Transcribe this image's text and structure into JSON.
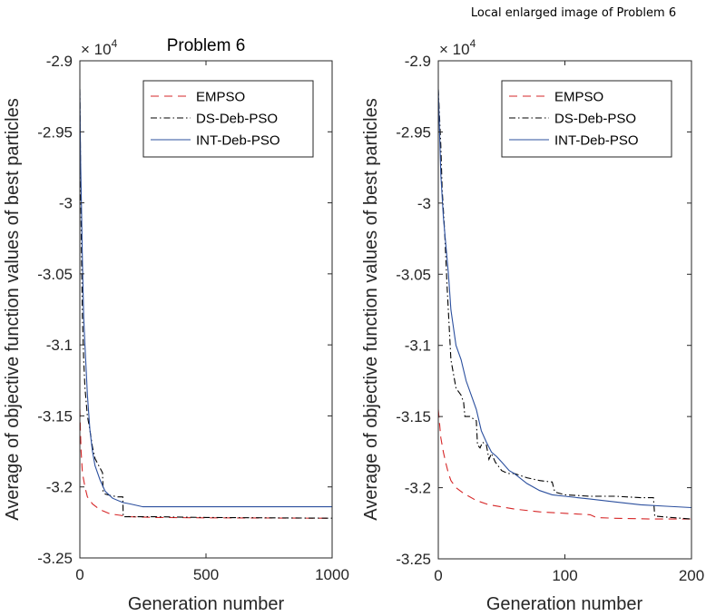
{
  "figure_title": "Local enlarged image of Problem 6",
  "colors": {
    "EMPSO": "#d62728",
    "DS-Deb-PSO": "#000000",
    "INT-Deb-PSO": "#2b4f9e",
    "axis": "#262626"
  },
  "chart_data": [
    {
      "type": "line",
      "title": "Problem 6",
      "xlabel": "Generation number",
      "ylabel": "Average of objective function values of best particles",
      "exponent_label": "× 10",
      "exponent_power": "4",
      "xlim": [
        0,
        1000
      ],
      "ylim": [
        -3.25,
        -2.9
      ],
      "xticks": [
        0,
        500,
        1000
      ],
      "xtick_labels": [
        "0",
        "500",
        "1000"
      ],
      "yticks": [
        -3.25,
        -3.2,
        -3.15,
        -3.1,
        -3.05,
        -3,
        -2.95,
        -2.9
      ],
      "ytick_labels": [
        "-3.25",
        "-3.2",
        "-3.15",
        "-3.1",
        "-3.05",
        "-3",
        "-2.95",
        "-2.9"
      ],
      "legend": {
        "position": "top-right",
        "entries": [
          "EMPSO",
          "DS-Deb-PSO",
          "INT-Deb-PSO"
        ]
      },
      "series": [
        {
          "name": "EMPSO",
          "style": "dashed",
          "x": [
            0,
            2,
            5,
            10,
            20,
            30,
            50,
            80,
            120,
            160,
            200,
            300,
            500,
            1000
          ],
          "y": [
            -3.145,
            -3.16,
            -3.175,
            -3.19,
            -3.2,
            -3.207,
            -3.212,
            -3.216,
            -3.219,
            -3.22,
            -3.221,
            -3.2215,
            -3.2218,
            -3.222
          ]
        },
        {
          "name": "DS-Deb-PSO",
          "style": "dashdot",
          "x": [
            0,
            3,
            6,
            10,
            15,
            20,
            30,
            40,
            50,
            60,
            75,
            90,
            92,
            100,
            120,
            150,
            170,
            172,
            200,
            300,
            500,
            1000
          ],
          "y": [
            -2.92,
            -2.98,
            -3.03,
            -3.08,
            -3.11,
            -3.13,
            -3.15,
            -3.16,
            -3.172,
            -3.18,
            -3.185,
            -3.19,
            -3.203,
            -3.205,
            -3.206,
            -3.207,
            -3.207,
            -3.221,
            -3.221,
            -3.221,
            -3.2215,
            -3.222
          ]
        },
        {
          "name": "INT-Deb-PSO",
          "style": "solid",
          "x": [
            0,
            3,
            6,
            10,
            15,
            20,
            30,
            40,
            50,
            60,
            80,
            100,
            130,
            170,
            200,
            250,
            300,
            500,
            1000
          ],
          "y": [
            -2.92,
            -2.97,
            -3.0,
            -3.04,
            -3.08,
            -3.1,
            -3.135,
            -3.16,
            -3.175,
            -3.185,
            -3.195,
            -3.203,
            -3.208,
            -3.211,
            -3.212,
            -3.214,
            -3.214,
            -3.214,
            -3.214
          ]
        }
      ]
    },
    {
      "type": "line",
      "title": "",
      "xlabel": "Generation number",
      "ylabel": "Average of objective function values of best particles",
      "exponent_label": "× 10",
      "exponent_power": "4",
      "xlim": [
        0,
        200
      ],
      "ylim": [
        -3.25,
        -2.9
      ],
      "xticks": [
        0,
        100,
        200
      ],
      "xtick_labels": [
        "0",
        "100",
        "200"
      ],
      "yticks": [
        -3.25,
        -3.2,
        -3.15,
        -3.1,
        -3.05,
        -3,
        -2.95,
        -2.9
      ],
      "ytick_labels": [
        "-3.25",
        "-3.2",
        "-3.15",
        "-3.1",
        "-3.05",
        "-3",
        "-2.95",
        "-2.9"
      ],
      "legend": {
        "position": "top-right",
        "entries": [
          "EMPSO",
          "DS-Deb-PSO",
          "INT-Deb-PSO"
        ]
      },
      "series": [
        {
          "name": "EMPSO",
          "style": "dashed",
          "x": [
            0,
            1,
            2,
            4,
            6,
            8,
            10,
            14,
            20,
            30,
            40,
            60,
            80,
            100,
            120,
            125,
            140,
            170,
            200
          ],
          "y": [
            -3.145,
            -3.155,
            -3.165,
            -3.175,
            -3.183,
            -3.19,
            -3.195,
            -3.2,
            -3.204,
            -3.209,
            -3.212,
            -3.215,
            -3.217,
            -3.218,
            -3.219,
            -3.221,
            -3.2215,
            -3.222,
            -3.222
          ]
        },
        {
          "name": "DS-Deb-PSO",
          "style": "dashdot",
          "x": [
            0,
            1,
            2,
            3,
            5,
            7,
            10,
            14,
            18,
            20,
            21,
            25,
            30,
            31,
            33,
            35,
            38,
            40,
            42,
            45,
            50,
            55,
            60,
            70,
            80,
            90,
            92,
            100,
            120,
            140,
            160,
            170,
            171,
            185,
            200
          ],
          "y": [
            -2.92,
            -2.94,
            -2.96,
            -2.99,
            -3.02,
            -3.06,
            -3.11,
            -3.13,
            -3.135,
            -3.14,
            -3.15,
            -3.15,
            -3.153,
            -3.17,
            -3.172,
            -3.168,
            -3.17,
            -3.18,
            -3.176,
            -3.182,
            -3.188,
            -3.19,
            -3.19,
            -3.193,
            -3.195,
            -3.196,
            -3.203,
            -3.205,
            -3.206,
            -3.206,
            -3.207,
            -3.207,
            -3.22,
            -3.221,
            -3.222
          ]
        },
        {
          "name": "INT-Deb-PSO",
          "style": "solid",
          "x": [
            0,
            1,
            2,
            4,
            6,
            8,
            10,
            14,
            18,
            22,
            26,
            30,
            34,
            38,
            42,
            46,
            50,
            56,
            60,
            70,
            80,
            90,
            100,
            120,
            140,
            160,
            180,
            200
          ],
          "y": [
            -2.92,
            -2.95,
            -2.98,
            -3.01,
            -3.03,
            -3.05,
            -3.075,
            -3.1,
            -3.11,
            -3.125,
            -3.135,
            -3.145,
            -3.16,
            -3.168,
            -3.175,
            -3.178,
            -3.182,
            -3.188,
            -3.19,
            -3.197,
            -3.202,
            -3.205,
            -3.206,
            -3.208,
            -3.21,
            -3.212,
            -3.213,
            -3.214
          ]
        }
      ]
    }
  ]
}
